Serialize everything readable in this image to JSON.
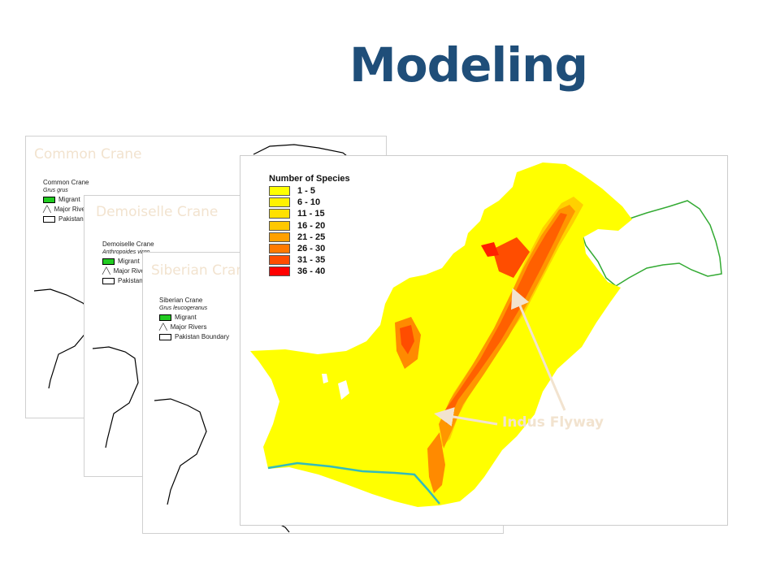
{
  "slide": {
    "title": "Modeling"
  },
  "cards": [
    {
      "title": "Common Crane",
      "legend": {
        "name": "Common Crane",
        "sci": "Grus grus",
        "items": [
          "Migrant",
          "Major Rivers",
          "Pakistan Boundary"
        ]
      }
    },
    {
      "title": "Demoiselle Crane",
      "legend": {
        "name": "Demoiselle Crane",
        "sci": "Anthropoides virgo",
        "items": [
          "Migrant",
          "Major Rivers",
          "Pakistan Boundary"
        ]
      }
    },
    {
      "title": "Siberian Crane",
      "legend": {
        "name": "Siberian Crane",
        "sci": "Grus leucogeranus",
        "items": [
          "Migrant",
          "Major Rivers",
          "Pakistan Boundary"
        ]
      }
    }
  ],
  "main_map": {
    "legend_title": "Number of Species",
    "legend": [
      {
        "label": "1 - 5",
        "color": "#ffff00"
      },
      {
        "label": "6 - 10",
        "color": "#fff200"
      },
      {
        "label": "11 - 15",
        "color": "#ffe100"
      },
      {
        "label": "16 - 20",
        "color": "#ffc800"
      },
      {
        "label": "21 - 25",
        "color": "#ffa000"
      },
      {
        "label": "26 - 30",
        "color": "#ff7a00"
      },
      {
        "label": "31 - 35",
        "color": "#ff4d00"
      },
      {
        "label": "36 - 40",
        "color": "#ff0000"
      }
    ],
    "annotation": "Indus Flyway",
    "colors": {
      "boundary_green": "#33aa33",
      "river_teal": "#33bbbb",
      "arrow": "#f2e3cf"
    }
  }
}
